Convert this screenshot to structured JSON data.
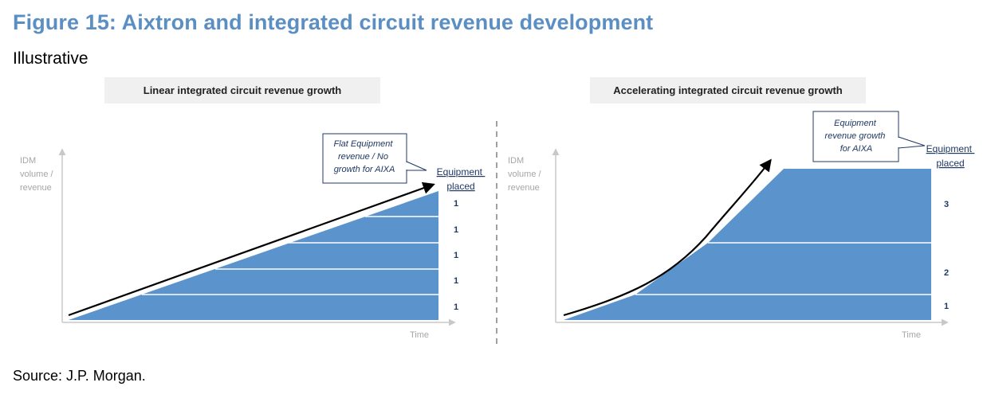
{
  "figure": {
    "title": "Figure 15: Aixtron and integrated circuit revenue development",
    "subtitle": "Illustrative",
    "source": "Source: J.P. Morgan."
  },
  "left_panel": {
    "header": "Linear integrated circuit revenue growth",
    "y_label": [
      "IDM",
      "volume /",
      "revenue"
    ],
    "x_label": "Time",
    "callout": [
      "Flat Equipment",
      "revenue / No",
      "growth for AIXA"
    ],
    "column_header": [
      "Equipment",
      "placed"
    ],
    "band_labels": [
      "1",
      "1",
      "1",
      "1",
      "1"
    ]
  },
  "right_panel": {
    "header": "Accelerating integrated circuit revenue growth",
    "y_label": [
      "IDM",
      "volume /",
      "revenue"
    ],
    "x_label": "Time",
    "callout": [
      "Equipment",
      "revenue growth",
      "for AIXA"
    ],
    "column_header": [
      "Equipment",
      "placed"
    ],
    "band_labels": [
      "3",
      "2",
      "1"
    ]
  },
  "colors": {
    "title": "#5b8fc4",
    "fill": "#5b93cc",
    "axis": "#c8c8c8",
    "callout_border": "#1f3864"
  }
}
